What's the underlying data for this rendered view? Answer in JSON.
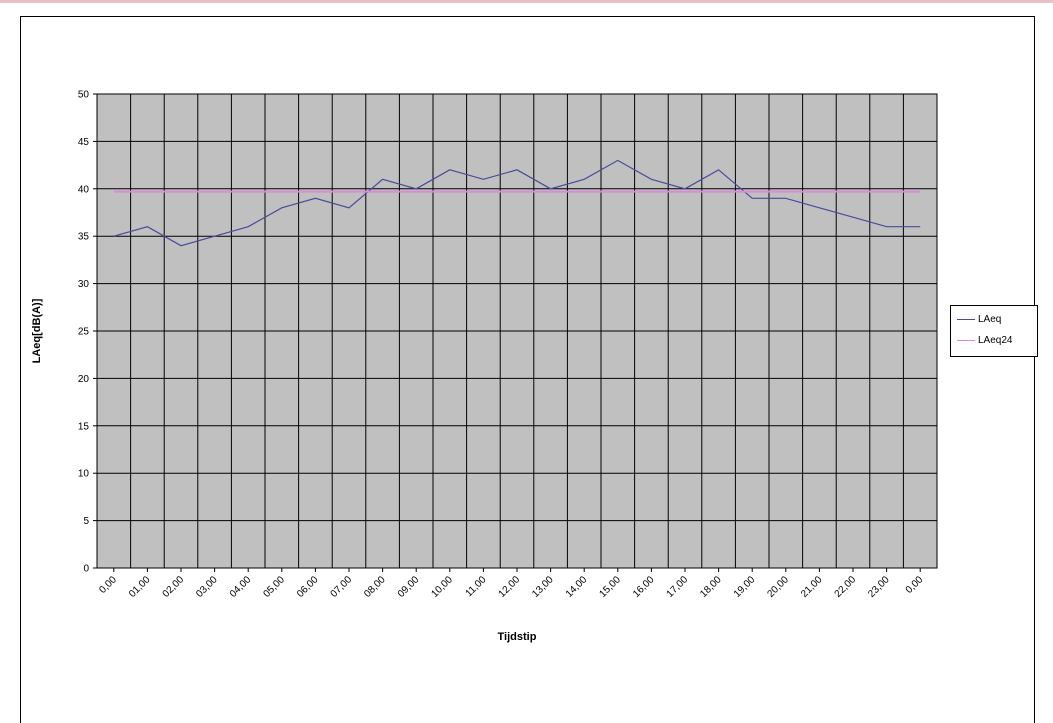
{
  "chart_data": {
    "type": "line",
    "title": "",
    "xlabel": "Tijdstip",
    "ylabel": "LAeq[dB(A)]",
    "ylim": [
      0,
      50
    ],
    "yticks": [
      0,
      5,
      10,
      15,
      20,
      25,
      30,
      35,
      40,
      45,
      50
    ],
    "grid": true,
    "legend_placement": "right",
    "plot_background": "#c0c0c0",
    "categories": [
      "0,00",
      "01,00",
      "02,00",
      "03,00",
      "04,00",
      "05,00",
      "06,00",
      "07,00",
      "08,00",
      "09,00",
      "10,00",
      "11,00",
      "12,00",
      "13,00",
      "14,00",
      "15,00",
      "16,00",
      "17,00",
      "18,00",
      "19,00",
      "20,00",
      "21,00",
      "22,00",
      "23,00",
      "0,00"
    ],
    "series": [
      {
        "name": "LAeq",
        "color": "#4b4b9a",
        "values": [
          35,
          36,
          34,
          35,
          36,
          38,
          39,
          38,
          41,
          40,
          42,
          41,
          42,
          40,
          41,
          43,
          41,
          40,
          42,
          39,
          39,
          38,
          37,
          36,
          36
        ]
      },
      {
        "name": "LAeq24",
        "color": "#d98ad9",
        "values": [
          39.7,
          39.7,
          39.7,
          39.7,
          39.7,
          39.7,
          39.7,
          39.7,
          39.7,
          39.7,
          39.7,
          39.7,
          39.7,
          39.7,
          39.7,
          39.7,
          39.7,
          39.7,
          39.7,
          39.7,
          39.7,
          39.7,
          39.7,
          39.7,
          39.7
        ]
      }
    ]
  }
}
